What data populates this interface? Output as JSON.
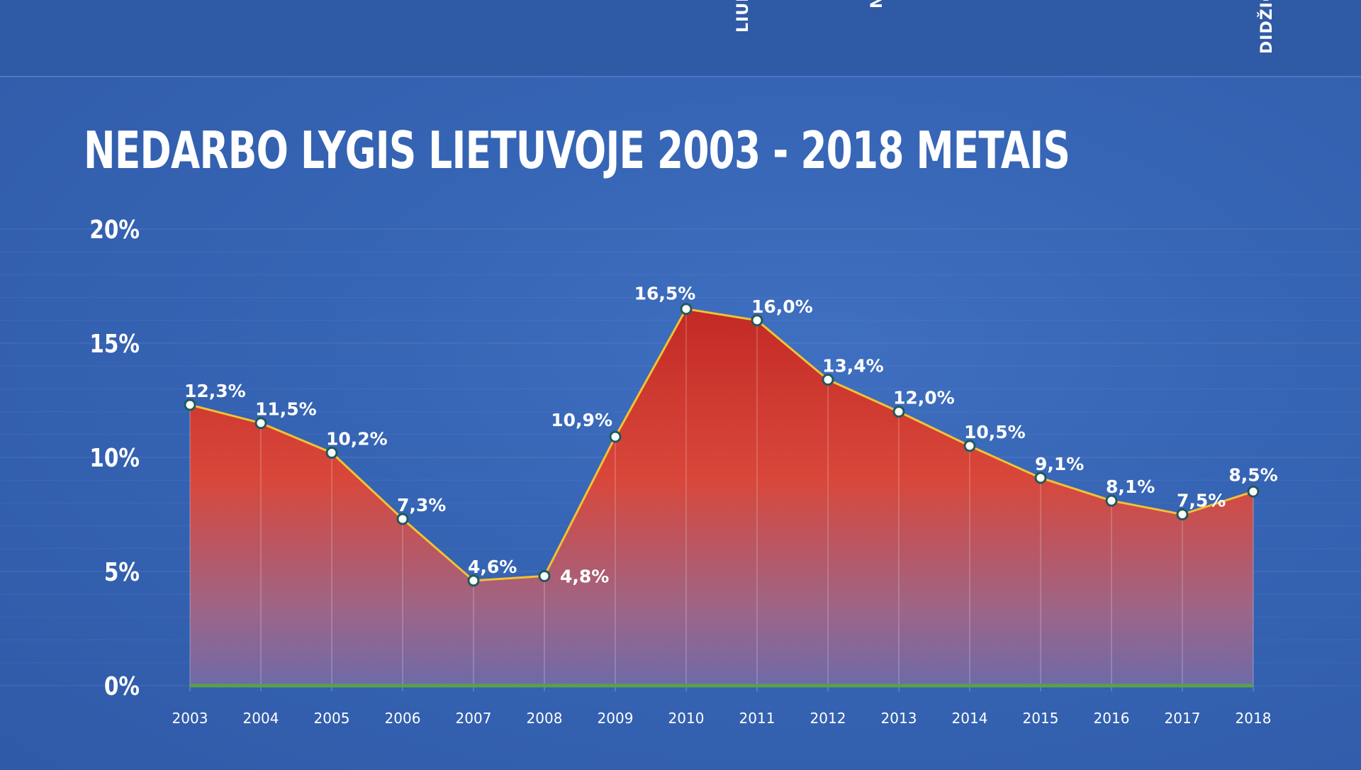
{
  "top_labels": {
    "left": "LIUI",
    "middle": "N",
    "right": "DIDŽIO"
  },
  "colors": {
    "background": "#3664b4",
    "area_top": "#c9302a",
    "area_bottom": "#8a6a9a",
    "line": "#f2c230",
    "baseline": "#5aa04a"
  },
  "chart_data": {
    "type": "area",
    "title": "NEDARBO LYGIS LIETUVOJE 2003 - 2018 METAIS",
    "xlabel": "",
    "ylabel": "",
    "x": [
      "2003",
      "2004",
      "2005",
      "2006",
      "2007",
      "2008",
      "2009",
      "2010",
      "2011",
      "2012",
      "2013",
      "2014",
      "2015",
      "2016",
      "2017",
      "2018"
    ],
    "values": [
      12.3,
      11.5,
      10.2,
      7.3,
      4.6,
      4.8,
      10.9,
      16.5,
      16.0,
      13.4,
      12.0,
      10.5,
      9.1,
      8.1,
      7.5,
      8.5
    ],
    "data_labels": [
      "12,3%",
      "11,5%",
      "10,2%",
      "7,3%",
      "4,6%",
      "4,8%",
      "10,9%",
      "16,5%",
      "16,0%",
      "13,4%",
      "12,0%",
      "10,5%",
      "9,1%",
      "8,1%",
      "7,5%",
      "8,5%"
    ],
    "ylim": [
      0,
      20
    ],
    "yticks": [
      0,
      5,
      10,
      15,
      20
    ],
    "ytick_labels": [
      "0%",
      "5%",
      "10%",
      "15%",
      "20%"
    ],
    "grid": true
  }
}
